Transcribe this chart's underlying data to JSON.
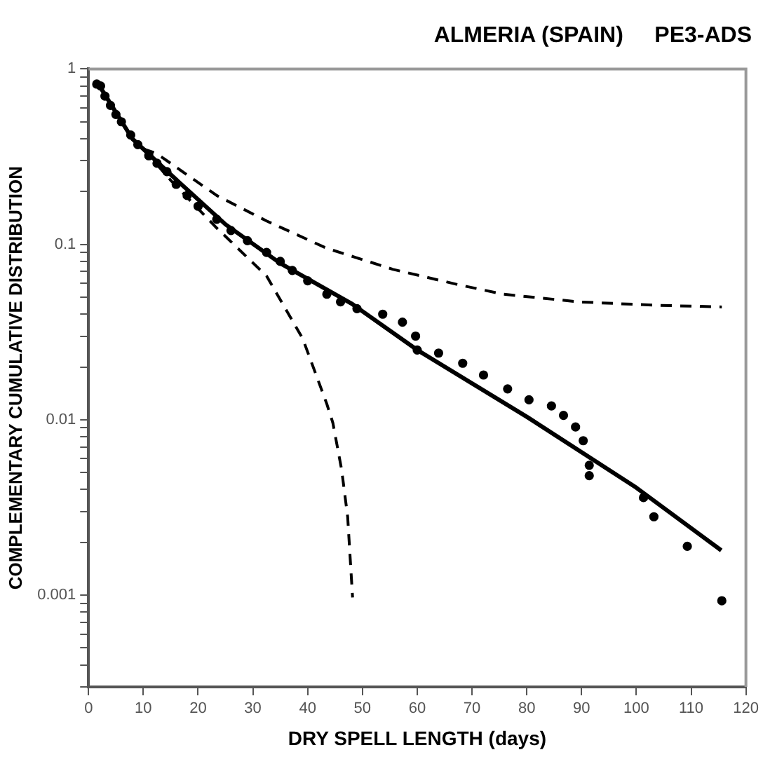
{
  "chart_data": {
    "type": "scatter",
    "title": "ALMERIA (SPAIN)     PE3-ADS",
    "xlabel": "DRY SPELL LENGTH (days)",
    "ylabel": "COMPLEMENTARY CUMULATIVE DISTRIBUTION",
    "log": "y",
    "grid": false,
    "legend": false,
    "xlim": [
      0,
      120
    ],
    "xticks": [
      0,
      10,
      20,
      30,
      40,
      50,
      60,
      70,
      80,
      90,
      100,
      110,
      120
    ],
    "ylim": [
      0.0003,
      1
    ],
    "yticks": [
      {
        "value": 0.0003,
        "label": null
      },
      {
        "value": 0.0004,
        "label": null
      },
      {
        "value": 0.0005,
        "label": null
      },
      {
        "value": 0.0006,
        "label": null
      },
      {
        "value": 0.0007,
        "label": null
      },
      {
        "value": 0.0008,
        "label": null
      },
      {
        "value": 0.0009,
        "label": null
      },
      0.001,
      {
        "value": 0.002,
        "label": null
      },
      {
        "value": 0.003,
        "label": null
      },
      {
        "value": 0.004,
        "label": null
      },
      {
        "value": 0.005,
        "label": null
      },
      {
        "value": 0.006,
        "label": null
      },
      {
        "value": 0.007,
        "label": null
      },
      {
        "value": 0.008,
        "label": null
      },
      {
        "value": 0.009,
        "label": null
      },
      0.01,
      {
        "value": 0.02,
        "label": null
      },
      {
        "value": 0.03,
        "label": null
      },
      {
        "value": 0.04,
        "label": null
      },
      {
        "value": 0.05,
        "label": null
      },
      {
        "value": 0.06,
        "label": null
      },
      {
        "value": 0.07,
        "label": null
      },
      {
        "value": 0.08,
        "label": null
      },
      {
        "value": 0.09,
        "label": null
      },
      0.1,
      {
        "value": 0.2,
        "label": null
      },
      {
        "value": 0.3,
        "label": null
      },
      {
        "value": 0.4,
        "label": null
      },
      {
        "value": 0.5,
        "label": null
      },
      {
        "value": 0.6,
        "label": null
      },
      {
        "value": 0.7,
        "label": null
      },
      {
        "value": 0.8,
        "label": null
      },
      {
        "value": 0.9,
        "label": null
      },
      1
    ],
    "series": [
      {
        "marker": "circle",
        "color": "#000000",
        "x": [
          1.5,
          2.2,
          3,
          4,
          5,
          6,
          7.7,
          9,
          11,
          12.5,
          14.3,
          16,
          18,
          20,
          23.4,
          26,
          29,
          32.5,
          35,
          37.2,
          40,
          43.5,
          46,
          49,
          53.7,
          57.3,
          59.7,
          60,
          63.9,
          68.3,
          72.1,
          76.5,
          80.4,
          84.5,
          86.7,
          88.9,
          90.3,
          91.4,
          91.4,
          101.3,
          103.2,
          109.3,
          115.6
        ],
        "values": [
          0.82,
          0.8,
          0.7,
          0.62,
          0.55,
          0.5,
          0.42,
          0.37,
          0.32,
          0.29,
          0.26,
          0.22,
          0.19,
          0.165,
          0.139,
          0.12,
          0.105,
          0.09,
          0.08,
          0.071,
          0.062,
          0.052,
          0.047,
          0.043,
          0.04,
          0.036,
          0.03,
          0.025,
          0.024,
          0.021,
          0.018,
          0.015,
          0.013,
          0.012,
          0.0106,
          0.0091,
          0.0076,
          0.0055,
          0.0048,
          0.0036,
          0.0028,
          0.0019,
          0.00093
        ]
      },
      {
        "type": "line",
        "marker": "none",
        "line_style": "solid",
        "color": "#000000",
        "x": [
          2,
          8,
          15,
          25,
          35,
          48,
          60,
          80,
          100,
          115.5
        ],
        "values": [
          0.8,
          0.4,
          0.25,
          0.13,
          0.078,
          0.046,
          0.025,
          0.0104,
          0.0041,
          0.0018
        ]
      },
      {
        "type": "line",
        "marker": "none",
        "line_style": "dashed",
        "color": "#000000",
        "x": [
          10,
          12.4,
          23.4,
          32.5,
          43.5,
          55.6,
          67.4,
          75.7,
          89.5,
          103.2,
          115.6
        ],
        "values": [
          0.35,
          0.33,
          0.19,
          0.136,
          0.095,
          0.072,
          0.059,
          0.052,
          0.047,
          0.045,
          0.044
        ]
      },
      {
        "type": "line",
        "marker": "none",
        "line_style": "dashed",
        "color": "#000000",
        "x": [
          10,
          15.1,
          23.4,
          32.5,
          39.1,
          43.5,
          44.6,
          46.2,
          47.3,
          48.2
        ],
        "values": [
          0.35,
          0.23,
          0.124,
          0.066,
          0.029,
          0.0123,
          0.0096,
          0.0052,
          0.0028,
          0.00097
        ]
      }
    ]
  }
}
